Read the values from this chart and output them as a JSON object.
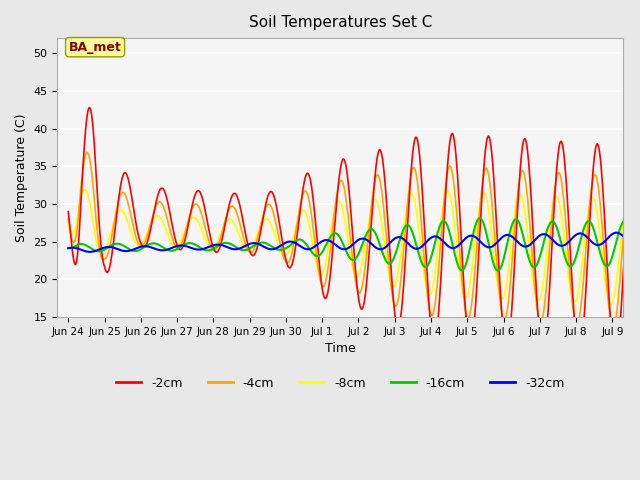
{
  "title": "Soil Temperatures Set C",
  "xlabel": "Time",
  "ylabel": "Soil Temperature (C)",
  "ylim": [
    15,
    52
  ],
  "yticks": [
    15,
    20,
    25,
    30,
    35,
    40,
    45,
    50
  ],
  "colors": {
    "-2cm": "#FF0000",
    "-4cm": "#FFA500",
    "-8cm": "#FFFF00",
    "-16cm": "#00CC00",
    "-32cm": "#0000FF"
  },
  "annotation_text": "BA_met",
  "annotation_box_color": "#FFFF99",
  "annotation_text_color": "#8B0000",
  "background_color": "#E8E8E8",
  "plot_bg_color": "#F5F5F5",
  "tick_labels": [
    "Jun 24",
    "Jun 25",
    "Jun 26",
    "Jun 27",
    "Jun 28",
    "Jun 29",
    "Jun 30",
    "Jul 1",
    "Jul 2",
    "Jul 3",
    "Jul 4",
    "Jul 5",
    "Jul 6",
    "Jul 7",
    "Jul 8",
    "Jul 9"
  ],
  "n_days": 16
}
